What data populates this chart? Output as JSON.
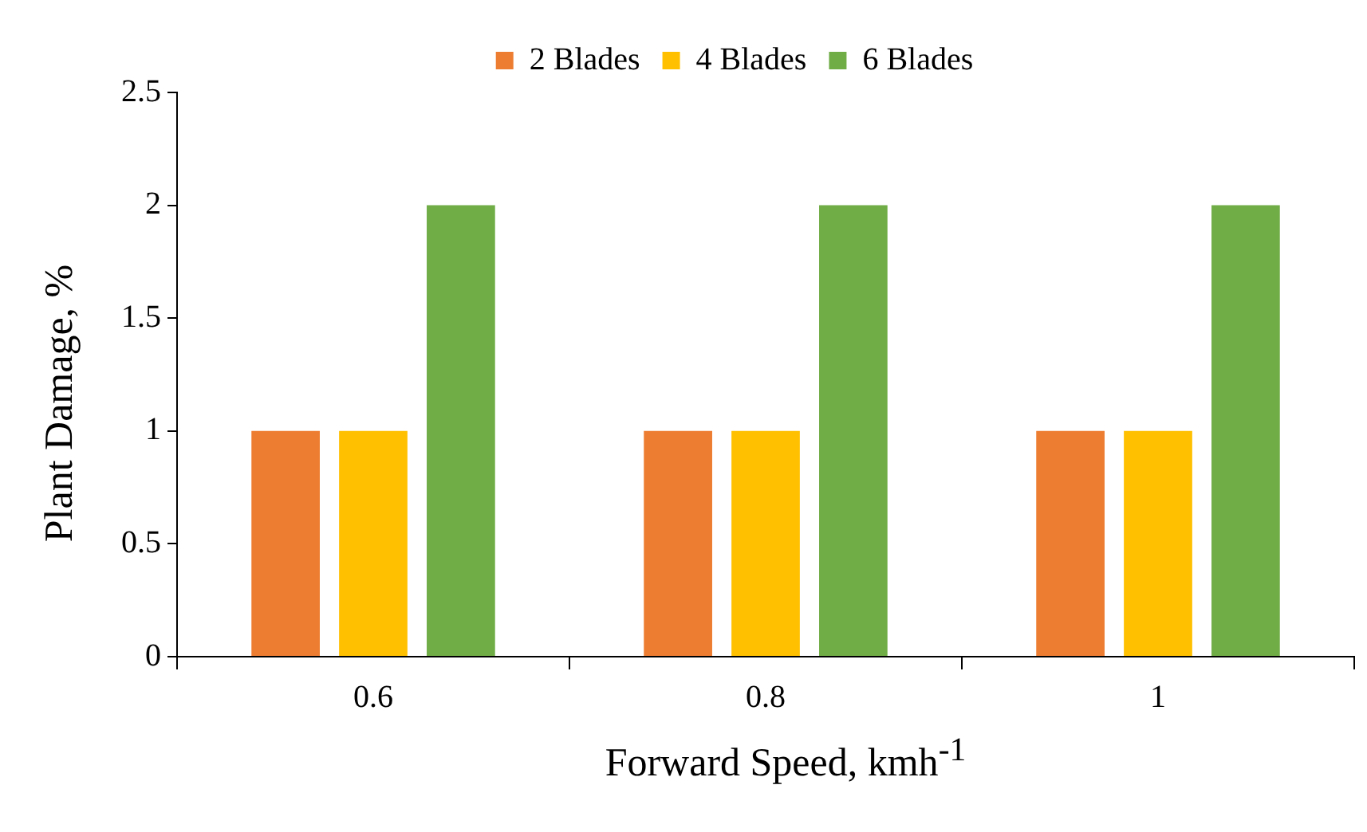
{
  "chart_data": {
    "type": "bar",
    "xlabel": "Forward Speed, kmh$^{-1}$",
    "ylabel": "Plant Damage, %",
    "categories": [
      "0.6",
      "0.8",
      "1"
    ],
    "series": [
      {
        "name": "2 Blades",
        "color": "#ed7d31",
        "values": [
          1,
          1,
          1
        ]
      },
      {
        "name": "4 Blades",
        "color": "#ffc000",
        "values": [
          1,
          1,
          1
        ]
      },
      {
        "name": "6 Blades",
        "color": "#70ad47",
        "values": [
          2,
          2,
          2
        ]
      }
    ],
    "ylim": [
      0,
      2.5
    ],
    "yticks": [
      0,
      0.5,
      1,
      1.5,
      2,
      2.5
    ],
    "grid": false,
    "legend": "top"
  }
}
